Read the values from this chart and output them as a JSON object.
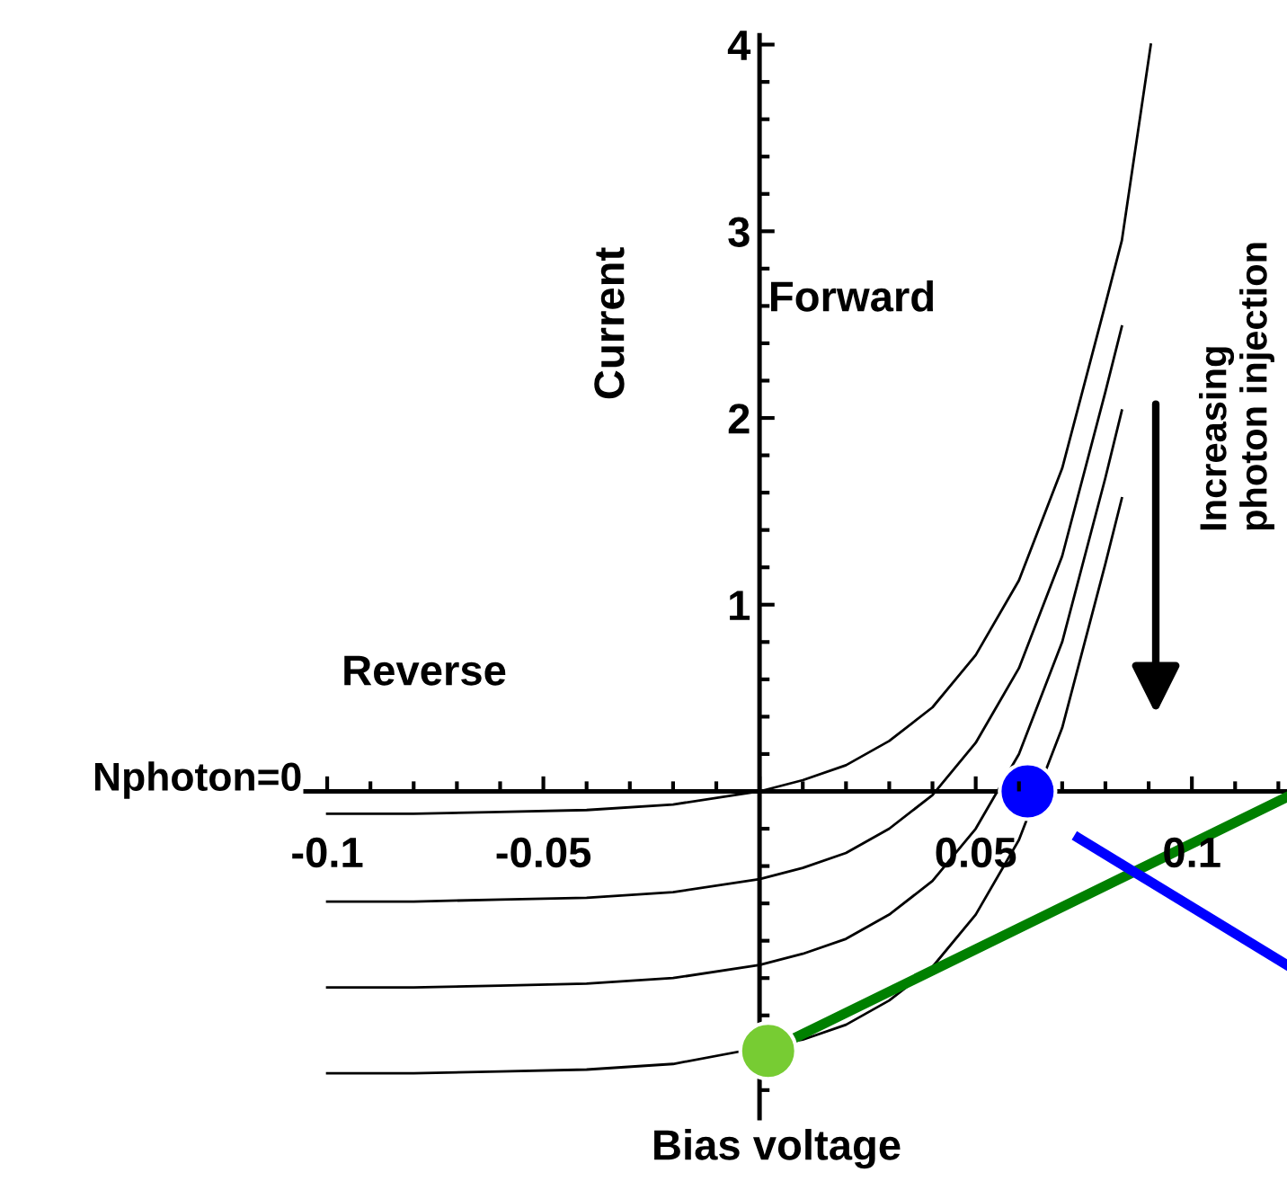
{
  "chart_data": {
    "type": "line",
    "xlabel": "Bias voltage",
    "ylabel": "Current",
    "xlim": [
      -0.105,
      0.122
    ],
    "ylim": [
      -1.75,
      4.05
    ],
    "xticks": [
      -0.1,
      -0.05,
      {
        "value": 0,
        "label": null
      },
      0.05,
      0.1
    ],
    "yticks": [
      {
        "value": 0,
        "label": null
      },
      1,
      2,
      3,
      4
    ],
    "grid": false,
    "legend": false,
    "annotations": [
      "Forward",
      "Reverse",
      "Increasing\nphoton injection"
    ],
    "series": [
      {
        "name": "Nphoton=0",
        "color": "#000000",
        "x": [
          -0.1,
          -0.08,
          -0.06,
          -0.04,
          -0.02,
          0,
          0.01,
          0.02,
          0.03,
          0.04,
          0.05,
          0.06,
          0.07,
          0.08,
          0.0838,
          0.0905
        ],
        "values": [
          -0.12,
          -0.12,
          -0.11,
          -0.1,
          -0.07,
          0,
          0.06,
          0.14,
          0.27,
          0.45,
          0.73,
          1.13,
          1.73,
          2.61,
          2.95,
          4.0
        ]
      },
      {
        "color": "#000000",
        "x": [
          -0.1,
          -0.08,
          -0.06,
          -0.04,
          -0.02,
          0,
          0.01,
          0.02,
          0.03,
          0.04,
          0.05,
          0.06,
          0.07,
          0.08,
          0.0838
        ],
        "values": [
          -0.59,
          -0.59,
          -0.58,
          -0.57,
          -0.54,
          -0.47,
          -0.41,
          -0.33,
          -0.2,
          -0.02,
          0.26,
          0.66,
          1.26,
          2.14,
          2.49
        ]
      },
      {
        "color": "#000000",
        "x": [
          -0.1,
          -0.08,
          -0.06,
          -0.04,
          -0.02,
          0,
          0.01,
          0.02,
          0.03,
          0.04,
          0.05,
          0.06,
          0.07,
          0.08,
          0.0838
        ],
        "values": [
          -1.05,
          -1.05,
          -1.04,
          -1.03,
          -1.0,
          -0.93,
          -0.87,
          -0.79,
          -0.66,
          -0.48,
          -0.2,
          0.2,
          0.8,
          1.68,
          2.04
        ]
      },
      {
        "color": "#000000",
        "x": [
          -0.1,
          -0.08,
          -0.06,
          -0.04,
          -0.02,
          0.01,
          0.02,
          0.03,
          0.04,
          0.05,
          0.06,
          0.07,
          0.08,
          0.0838
        ],
        "values": [
          -1.51,
          -1.51,
          -1.5,
          -1.49,
          -1.46,
          -1.33,
          -1.25,
          -1.12,
          -0.94,
          -0.66,
          -0.26,
          0.34,
          1.22,
          1.57
        ]
      },
      {
        "color": "#008000",
        "x": [
          0.002,
          0.122
        ],
        "values": [
          -1.39,
          -0.03
        ]
      },
      {
        "color": "#0000ff",
        "x": [
          0.0738,
          0.122
        ],
        "values": [
          -0.25,
          -0.93
        ]
      },
      {
        "type": "scatter",
        "marker": "circle",
        "color": "#77cc33",
        "x": [
          0.002
        ],
        "values": [
          -1.39
        ]
      },
      {
        "type": "scatter",
        "marker": "circle",
        "color": "#0000ff",
        "x": [
          0.062
        ],
        "values": [
          0
        ]
      }
    ]
  }
}
